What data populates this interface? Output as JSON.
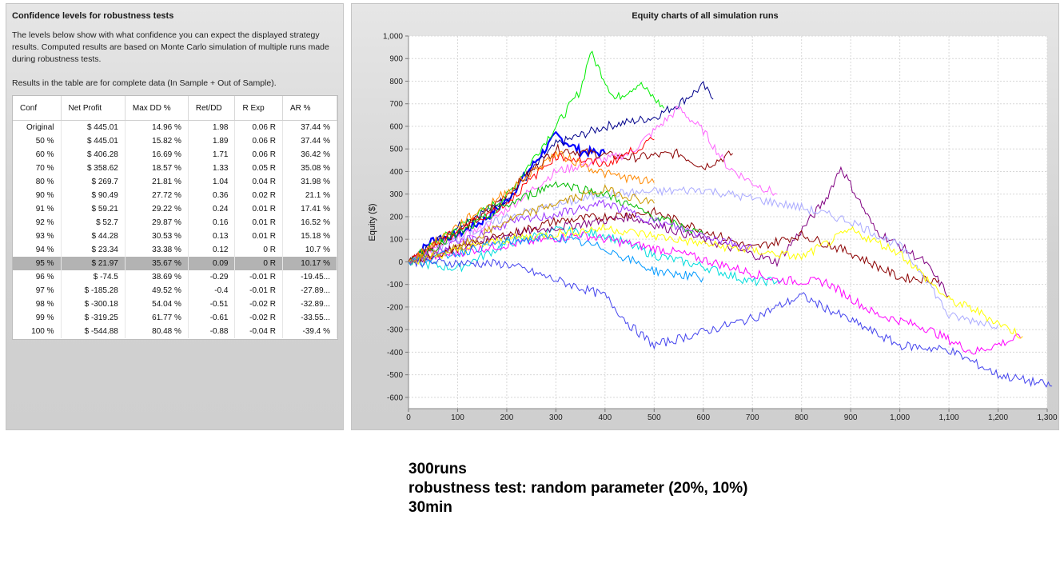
{
  "left_panel": {
    "title": "Confidence levels for robustness tests",
    "description": "The levels below show with what confidence you can expect the displayed strategy results. Computed results are based on Monte Carlo simulation of multiple runs made during robustness tests.",
    "note": "Results in the table are for complete data (In Sample + Out of Sample).",
    "table": {
      "headers": [
        "Conf",
        "Net Profit",
        "Max DD %",
        "Ret/DD",
        "R Exp",
        "AR %"
      ],
      "rows": [
        [
          "Original",
          "$ 445.01",
          "14.96 %",
          "1.98",
          "0.06 R",
          "37.44 %"
        ],
        [
          "50 %",
          "$ 445.01",
          "15.82 %",
          "1.89",
          "0.06 R",
          "37.44 %"
        ],
        [
          "60 %",
          "$ 406.28",
          "16.69 %",
          "1.71",
          "0.06 R",
          "36.42 %"
        ],
        [
          "70 %",
          "$ 358.62",
          "18.57 %",
          "1.33",
          "0.05 R",
          "35.08 %"
        ],
        [
          "80 %",
          "$ 269.7",
          "21.81 %",
          "1.04",
          "0.04 R",
          "31.98 %"
        ],
        [
          "90 %",
          "$ 90.49",
          "27.72 %",
          "0.36",
          "0.02 R",
          "21.1 %"
        ],
        [
          "91 %",
          "$ 59.21",
          "29.22 %",
          "0.24",
          "0.01 R",
          "17.41 %"
        ],
        [
          "92 %",
          "$ 52.7",
          "29.87 %",
          "0.16",
          "0.01 R",
          "16.52 %"
        ],
        [
          "93 %",
          "$ 44.28",
          "30.53 %",
          "0.13",
          "0.01 R",
          "15.18 %"
        ],
        [
          "94 %",
          "$ 23.34",
          "33.38 %",
          "0.12",
          "0 R",
          "10.7 %"
        ],
        [
          "95 %",
          "$ 21.97",
          "35.67 %",
          "0.09",
          "0 R",
          "10.17 %"
        ],
        [
          "96 %",
          "$ -74.5",
          "38.69 %",
          "-0.29",
          "-0.01 R",
          "-19.45..."
        ],
        [
          "97 %",
          "$ -185.28",
          "49.52 %",
          "-0.4",
          "-0.01 R",
          "-27.89..."
        ],
        [
          "98 %",
          "$ -300.18",
          "54.04 %",
          "-0.51",
          "-0.02 R",
          "-32.89..."
        ],
        [
          "99 %",
          "$ -319.25",
          "61.77 %",
          "-0.61",
          "-0.02 R",
          "-33.55..."
        ],
        [
          "100 %",
          "$ -544.88",
          "80.48 %",
          "-0.88",
          "-0.04 R",
          "-39.4 %"
        ]
      ],
      "selected_row": "95 %"
    }
  },
  "chart": {
    "title": "Equity charts of all simulation runs",
    "ylabel": "Equity ($)"
  },
  "chart_data": {
    "type": "line",
    "title": "Equity charts of all simulation runs",
    "xlabel": "",
    "ylabel": "Equity ($)",
    "xlim": [
      0,
      1300
    ],
    "ylim": [
      -650,
      1000
    ],
    "x_ticks": [
      0,
      100,
      200,
      300,
      400,
      500,
      600,
      700,
      800,
      900,
      1000,
      1100,
      1200,
      1300
    ],
    "x_tick_labels": [
      "0",
      "100",
      "200",
      "300",
      "400",
      "500",
      "600",
      "700",
      "800",
      "900",
      "1,000",
      "1,100",
      "1,200",
      "1,300"
    ],
    "y_ticks": [
      1000,
      900,
      800,
      700,
      600,
      500,
      400,
      300,
      200,
      100,
      0,
      -100,
      -200,
      -300,
      -400,
      -500,
      -600
    ],
    "y_tick_labels": [
      "1,000",
      "900",
      "800",
      "700",
      "600",
      "500",
      "400",
      "300",
      "200",
      "100",
      "0",
      "-100",
      "-200",
      "-300",
      "-400",
      "-500",
      "-600"
    ],
    "grid": true,
    "num_runs": 300,
    "series": [
      {
        "color": "#0000ff",
        "x": [
          0,
          50,
          100,
          150,
          200,
          250,
          300,
          350,
          400
        ],
        "y": [
          0,
          100,
          120,
          180,
          270,
          420,
          560,
          490,
          480
        ]
      },
      {
        "color": "#00008b",
        "x": [
          0,
          100,
          200,
          300,
          400,
          500,
          550,
          600,
          620
        ],
        "y": [
          0,
          160,
          280,
          520,
          600,
          640,
          700,
          780,
          720
        ]
      },
      {
        "color": "#00ee00",
        "x": [
          0,
          100,
          200,
          300,
          350,
          370,
          420,
          470,
          520
        ],
        "y": [
          0,
          150,
          290,
          600,
          760,
          930,
          720,
          790,
          680
        ]
      },
      {
        "color": "#8b0000",
        "x": [
          0,
          150,
          300,
          450,
          550,
          600,
          660
        ],
        "y": [
          0,
          200,
          500,
          460,
          480,
          420,
          480
        ]
      },
      {
        "color": "#ff66ff",
        "x": [
          0,
          150,
          300,
          450,
          550,
          600,
          650,
          700,
          750
        ],
        "y": [
          0,
          150,
          400,
          480,
          680,
          580,
          420,
          350,
          300
        ]
      },
      {
        "color": "#00dddd",
        "x": [
          0,
          100,
          200,
          300,
          400,
          500,
          600,
          700,
          760
        ],
        "y": [
          0,
          -30,
          80,
          140,
          120,
          30,
          -20,
          -90,
          -80
        ]
      },
      {
        "color": "#ff00ff",
        "x": [
          0,
          150,
          350,
          550,
          750,
          850,
          950,
          1050,
          1150,
          1250
        ],
        "y": [
          0,
          60,
          120,
          40,
          -80,
          -90,
          -230,
          -290,
          -400,
          -330
        ]
      },
      {
        "color": "#800080",
        "x": [
          0,
          200,
          450,
          600,
          750,
          850,
          880,
          950,
          1050,
          1100
        ],
        "y": [
          0,
          120,
          200,
          100,
          0,
          280,
          420,
          140,
          0,
          -150
        ]
      },
      {
        "color": "#8b0000",
        "x": [
          0,
          300,
          500,
          700,
          800,
          900,
          1000,
          1080
        ],
        "y": [
          0,
          180,
          220,
          60,
          120,
          40,
          -70,
          -80
        ]
      },
      {
        "color": "#4444ee",
        "x": [
          0,
          200,
          400,
          450,
          500,
          600,
          700,
          800,
          1000,
          1100,
          1200,
          1310
        ],
        "y": [
          0,
          -10,
          -150,
          -280,
          -370,
          -310,
          -250,
          -150,
          -370,
          -390,
          -500,
          -550
        ]
      },
      {
        "color": "#aaaaff",
        "x": [
          0,
          200,
          400,
          600,
          800,
          900,
          1000,
          1050,
          1100,
          1200
        ],
        "y": [
          0,
          200,
          300,
          320,
          240,
          180,
          70,
          -60,
          -240,
          -280
        ]
      },
      {
        "color": "#ffff00",
        "x": [
          0,
          200,
          400,
          600,
          800,
          900,
          1000,
          1100,
          1150,
          1250
        ],
        "y": [
          0,
          100,
          150,
          80,
          20,
          140,
          40,
          -170,
          -210,
          -330
        ]
      },
      {
        "color": "#ff0000",
        "x": [
          0,
          100,
          200,
          300,
          400,
          500
        ],
        "y": [
          0,
          140,
          260,
          470,
          430,
          540
        ]
      },
      {
        "color": "#00bb00",
        "x": [
          0,
          100,
          200,
          300,
          400,
          500,
          600
        ],
        "y": [
          0,
          120,
          250,
          350,
          300,
          200,
          120
        ]
      },
      {
        "color": "#ff8800",
        "x": [
          0,
          100,
          200,
          300,
          400,
          500
        ],
        "y": [
          0,
          160,
          310,
          480,
          390,
          350
        ]
      },
      {
        "color": "#9933ff",
        "x": [
          0,
          100,
          200,
          300,
          400,
          500,
          600,
          700
        ],
        "y": [
          0,
          80,
          170,
          210,
          260,
          180,
          120,
          60
        ]
      },
      {
        "color": "#0099ff",
        "x": [
          0,
          100,
          200,
          300,
          400,
          500,
          600
        ],
        "y": [
          0,
          40,
          90,
          110,
          60,
          -40,
          -70
        ]
      },
      {
        "color": "#cc9900",
        "x": [
          0,
          100,
          200,
          300,
          400,
          500
        ],
        "y": [
          0,
          60,
          180,
          260,
          320,
          260
        ]
      }
    ]
  },
  "caption": {
    "line1": "300runs",
    "line2": "robustness test: random parameter (20%, 10%)",
    "line3": "30min"
  }
}
